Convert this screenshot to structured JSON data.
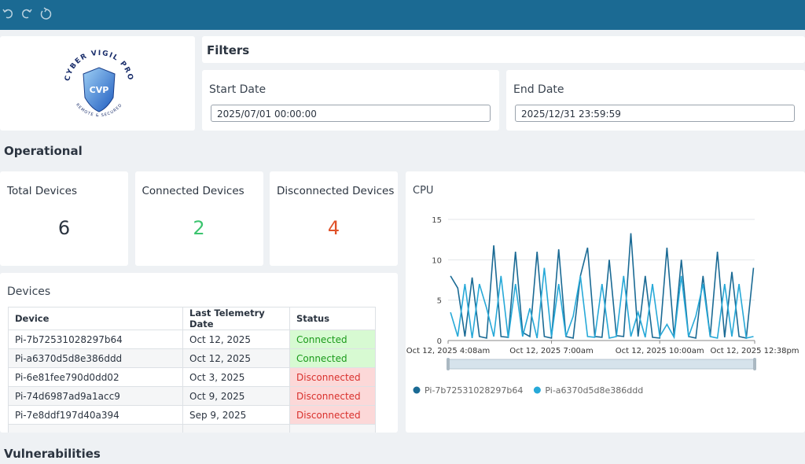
{
  "logo": {
    "title": "CYBER VIGIL PRO",
    "monogram": "CVP",
    "subtitle": "REMOTE & SECURED"
  },
  "filters": {
    "title": "Filters",
    "start_label": "Start Date",
    "start_value": "2025/07/01 00:00:00",
    "end_label": "End Date",
    "end_value": "2025/12/31 23:59:59"
  },
  "operational": {
    "title": "Operational",
    "kpis": [
      {
        "label": "Total Devices",
        "value": 6,
        "color": "#2b3440"
      },
      {
        "label": "Connected Devices",
        "value": 2,
        "color": "#3cc46f"
      },
      {
        "label": "Disconnected Devices",
        "value": 4,
        "color": "#e0522a"
      }
    ]
  },
  "devices": {
    "title": "Devices",
    "columns": [
      "Device",
      "Last Telemetry Date",
      "Status"
    ],
    "rows": [
      {
        "cells": [
          "Pi-7b72531028297b64",
          "Oct 12, 2025",
          "Connected"
        ],
        "connected": true
      },
      {
        "cells": [
          "Pi-a6370d5d8e386ddd",
          "Oct 12, 2025",
          "Connected"
        ],
        "connected": true
      },
      {
        "cells": [
          "Pi-6e81fee790d0dd02",
          "Oct 3, 2025",
          "Disconnected"
        ],
        "connected": false
      },
      {
        "cells": [
          "Pi-74d6987ad9a1acc9",
          "Oct 9, 2025",
          "Disconnected"
        ],
        "connected": false
      },
      {
        "cells": [
          "Pi-7e8ddf197d40a394",
          "Sep 9, 2025",
          "Disconnected"
        ],
        "connected": false
      }
    ]
  },
  "vulnerabilities": {
    "title": "Vulnerabilities"
  },
  "chart_data": {
    "type": "line",
    "title": "CPU",
    "x": [
      4.2,
      4.4,
      4.6,
      4.8,
      5.0,
      5.2,
      5.4,
      5.6,
      5.8,
      6.0,
      6.2,
      6.4,
      6.6,
      6.8,
      7.0,
      7.2,
      7.4,
      7.6,
      7.8,
      8.0,
      8.2,
      8.4,
      8.6,
      8.8,
      9.0,
      9.2,
      9.4,
      9.6,
      9.8,
      10.0,
      10.2,
      10.4,
      10.6,
      10.8,
      11.0,
      11.2,
      11.4,
      11.6,
      11.8,
      12.0,
      12.2,
      12.4,
      12.6
    ],
    "series": [
      {
        "name": "Pi-7b72531028297b64",
        "color": "#1a6a94",
        "values": [
          8,
          6.5,
          0.5,
          7.8,
          0.5,
          0.3,
          11.8,
          0.5,
          0.4,
          11,
          1,
          0.5,
          11,
          0.5,
          0.3,
          11.3,
          0.5,
          0.3,
          8,
          11.5,
          0.5,
          0.4,
          10,
          0.6,
          0.5,
          13.3,
          0.5,
          8,
          0.4,
          0.3,
          11.5,
          0.5,
          10,
          0.5,
          0.3,
          8,
          0.5,
          11,
          0.4,
          8.5,
          0.5,
          0.3,
          9
        ]
      },
      {
        "name": "Pi-a6370d5d8e386ddd",
        "color": "#27a9d8",
        "values": [
          3.5,
          0.5,
          7,
          0.3,
          7,
          4,
          0.5,
          8,
          0.3,
          7,
          0.5,
          4,
          0.3,
          9,
          0.5,
          7,
          0.5,
          3,
          8,
          0.5,
          0.4,
          7,
          0.3,
          0.5,
          8,
          0.5,
          3.5,
          0.4,
          7,
          0.5,
          2,
          0.4,
          8,
          0.5,
          3,
          7,
          0.5,
          0.3,
          7,
          0.5,
          7,
          0.3,
          0.5
        ]
      }
    ],
    "xlim": [
      4.133,
      12.633
    ],
    "xticks": [
      {
        "value": 4.133,
        "label": "Oct 12, 2025 4:08am"
      },
      {
        "value": 7,
        "label": "Oct 12, 2025 7:00am"
      },
      {
        "value": 10,
        "label": "Oct 12, 2025 10:00am"
      },
      {
        "value": 12.633,
        "label": "Oct 12, 2025 12:38pm"
      }
    ],
    "ylim": [
      0,
      15
    ],
    "yticks": [
      0,
      5,
      10,
      15
    ],
    "grid": true,
    "legend": "bottom"
  }
}
